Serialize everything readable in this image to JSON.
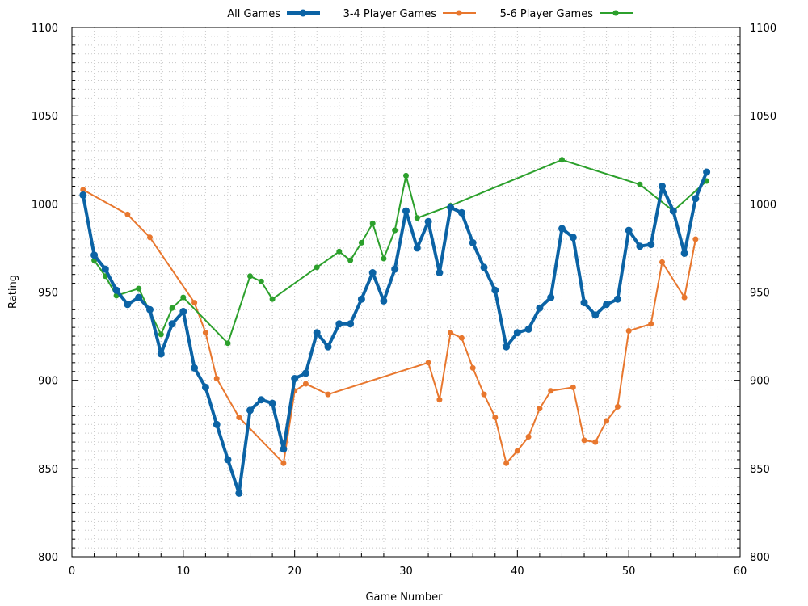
{
  "chart_data": {
    "type": "line",
    "xlabel": "Game Number",
    "ylabel": "Rating",
    "xlim": [
      0,
      60
    ],
    "ylim": [
      800,
      1100
    ],
    "xticks": [
      0,
      10,
      20,
      30,
      40,
      50,
      60
    ],
    "yticks": [
      800,
      850,
      900,
      950,
      1000,
      1050,
      1100
    ],
    "grid": "dotted major and minor",
    "legend_position": "top-center",
    "series": [
      {
        "name": "All Games",
        "color": "#0b63a5",
        "style": "thick",
        "points": [
          [
            1,
            1005
          ],
          [
            2,
            971
          ],
          [
            3,
            963
          ],
          [
            4,
            951
          ],
          [
            5,
            943
          ],
          [
            6,
            947
          ],
          [
            7,
            940
          ],
          [
            8,
            915
          ],
          [
            9,
            932
          ],
          [
            10,
            939
          ],
          [
            11,
            907
          ],
          [
            12,
            896
          ],
          [
            13,
            875
          ],
          [
            14,
            855
          ],
          [
            15,
            836
          ],
          [
            16,
            883
          ],
          [
            17,
            889
          ],
          [
            18,
            887
          ],
          [
            19,
            861
          ],
          [
            20,
            901
          ],
          [
            21,
            904
          ],
          [
            22,
            927
          ],
          [
            23,
            919
          ],
          [
            24,
            932
          ],
          [
            25,
            932
          ],
          [
            26,
            946
          ],
          [
            27,
            961
          ],
          [
            28,
            945
          ],
          [
            29,
            963
          ],
          [
            30,
            996
          ],
          [
            31,
            975
          ],
          [
            32,
            990
          ],
          [
            33,
            961
          ],
          [
            34,
            998
          ],
          [
            35,
            995
          ],
          [
            36,
            978
          ],
          [
            37,
            964
          ],
          [
            38,
            951
          ],
          [
            39,
            919
          ],
          [
            40,
            927
          ],
          [
            41,
            929
          ],
          [
            42,
            941
          ],
          [
            43,
            947
          ],
          [
            44,
            986
          ],
          [
            45,
            981
          ],
          [
            46,
            944
          ],
          [
            47,
            937
          ],
          [
            48,
            943
          ],
          [
            49,
            946
          ],
          [
            50,
            985
          ],
          [
            51,
            976
          ],
          [
            52,
            977
          ],
          [
            53,
            1010
          ],
          [
            54,
            996
          ],
          [
            55,
            972
          ],
          [
            56,
            1003
          ],
          [
            57,
            1018
          ]
        ]
      },
      {
        "name": "3-4 Player Games",
        "color": "#e8772e",
        "style": "thin",
        "points": [
          [
            1,
            1008
          ],
          [
            5,
            994
          ],
          [
            7,
            981
          ],
          [
            11,
            944
          ],
          [
            12,
            927
          ],
          [
            13,
            901
          ],
          [
            15,
            879
          ],
          [
            19,
            853
          ],
          [
            20,
            894
          ],
          [
            21,
            898
          ],
          [
            23,
            892
          ],
          [
            32,
            910
          ],
          [
            33,
            889
          ],
          [
            34,
            927
          ],
          [
            35,
            924
          ],
          [
            36,
            907
          ],
          [
            37,
            892
          ],
          [
            38,
            879
          ],
          [
            39,
            853
          ],
          [
            40,
            860
          ],
          [
            41,
            868
          ],
          [
            42,
            884
          ],
          [
            43,
            894
          ],
          [
            45,
            896
          ],
          [
            46,
            866
          ],
          [
            47,
            865
          ],
          [
            48,
            877
          ],
          [
            49,
            885
          ],
          [
            50,
            928
          ],
          [
            52,
            932
          ],
          [
            53,
            967
          ],
          [
            55,
            947
          ],
          [
            56,
            980
          ]
        ]
      },
      {
        "name": "5-6 Player Games",
        "color": "#2ca02c",
        "style": "thin",
        "points": [
          [
            2,
            968
          ],
          [
            3,
            959
          ],
          [
            4,
            948
          ],
          [
            6,
            952
          ],
          [
            8,
            926
          ],
          [
            9,
            941
          ],
          [
            10,
            947
          ],
          [
            14,
            921
          ],
          [
            16,
            959
          ],
          [
            17,
            956
          ],
          [
            18,
            946
          ],
          [
            22,
            964
          ],
          [
            24,
            973
          ],
          [
            25,
            968
          ],
          [
            26,
            978
          ],
          [
            27,
            989
          ],
          [
            28,
            969
          ],
          [
            29,
            985
          ],
          [
            30,
            1016
          ],
          [
            31,
            992
          ],
          [
            34,
            999
          ],
          [
            44,
            1025
          ],
          [
            51,
            1011
          ],
          [
            54,
            996
          ],
          [
            57,
            1013
          ]
        ]
      }
    ]
  }
}
